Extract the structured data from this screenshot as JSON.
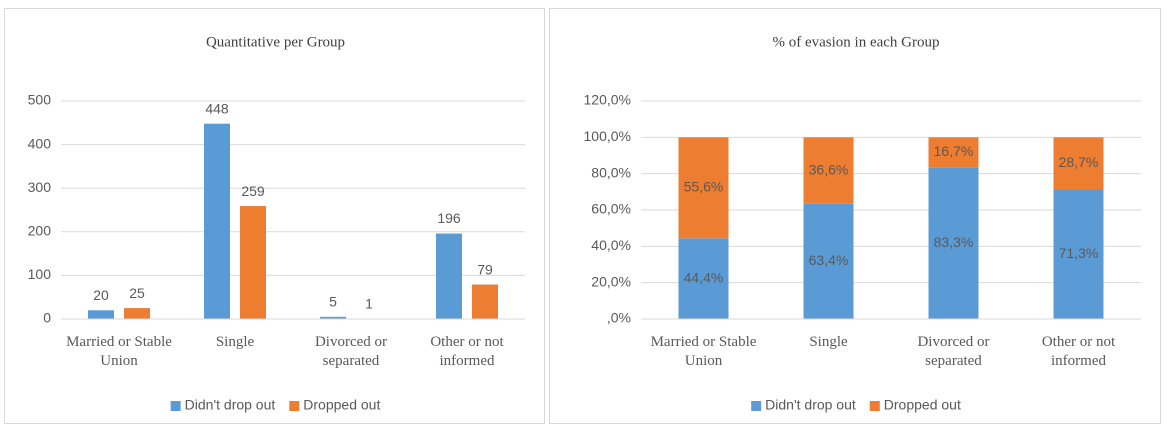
{
  "chart_data": [
    {
      "type": "bar",
      "title": "Quantitative  per Group",
      "categories": [
        "Married or Stable Union",
        "Single",
        "Divorced or separated",
        "Other or not informed"
      ],
      "series": [
        {
          "name": "Didn't drop out",
          "color": "#5b9bd5",
          "values": [
            20,
            448,
            5,
            196
          ]
        },
        {
          "name": "Dropped out",
          "color": "#ed7d31",
          "values": [
            25,
            259,
            1,
            79
          ]
        }
      ],
      "ylim": [
        0,
        500
      ],
      "yticks": [
        0,
        100,
        200,
        300,
        400,
        500
      ],
      "grid": true,
      "legend": "bottom"
    },
    {
      "type": "stacked-bar",
      "title": "% of evasion in each Group",
      "categories": [
        "Married or Stable Union",
        "Single",
        "Divorced or separated",
        "Other or not informed"
      ],
      "series": [
        {
          "name": "Didn't drop out",
          "color": "#5b9bd5",
          "values": [
            44.4,
            63.4,
            83.3,
            71.3
          ],
          "value_labels": [
            "44,4%",
            "63,4%",
            "83,3%",
            "71,3%"
          ]
        },
        {
          "name": "Dropped out",
          "color": "#ed7d31",
          "values": [
            55.6,
            36.6,
            16.7,
            28.7
          ],
          "value_labels": [
            "55,6%",
            "36,6%",
            "16,7%",
            "28,7%"
          ]
        }
      ],
      "ylim": [
        0,
        120
      ],
      "yticks": [
        {
          "value": 0,
          "label": ",0%"
        },
        {
          "value": 20,
          "label": "20,0%"
        },
        {
          "value": 40,
          "label": "40,0%"
        },
        {
          "value": 60,
          "label": "60,0%"
        },
        {
          "value": 80,
          "label": "80,0%"
        },
        {
          "value": 100,
          "label": "100,0%"
        },
        {
          "value": 120,
          "label": "120,0%"
        }
      ],
      "grid": true,
      "legend": "bottom"
    }
  ]
}
